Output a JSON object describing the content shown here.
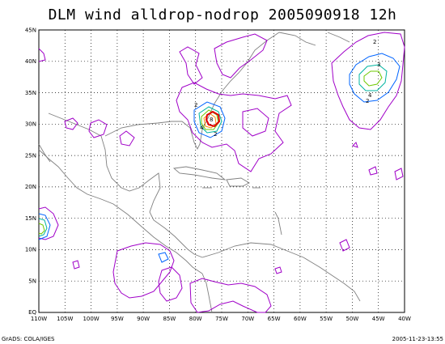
{
  "header": {
    "title": "DLM wind alldrop-nodrop 2005090918 12h"
  },
  "map": {
    "lon_labels": [
      "110W",
      "105W",
      "100W",
      "95W",
      "90W",
      "85W",
      "80W",
      "75W",
      "70W",
      "65W",
      "60W",
      "55W",
      "50W",
      "45W",
      "40W"
    ],
    "lat_labels": [
      "EQ",
      "5N",
      "10N",
      "15N",
      "20N",
      "25N",
      "30N",
      "35N",
      "40N",
      "45N"
    ],
    "contour_labels": [
      "2",
      "3",
      "2",
      "4",
      "2",
      "2",
      "4",
      "8"
    ],
    "colors": {
      "coast": "#808080",
      "grid": "#000000",
      "c1": "#a000c8",
      "c2": "#0064ff",
      "c3": "#00b4a0",
      "c4": "#6ec800",
      "c5": "#ff8c00",
      "c6": "#e10000"
    }
  },
  "footer": {
    "left": "GrADS: COLA/IGES",
    "right": "2005-11-23-13:55"
  }
}
